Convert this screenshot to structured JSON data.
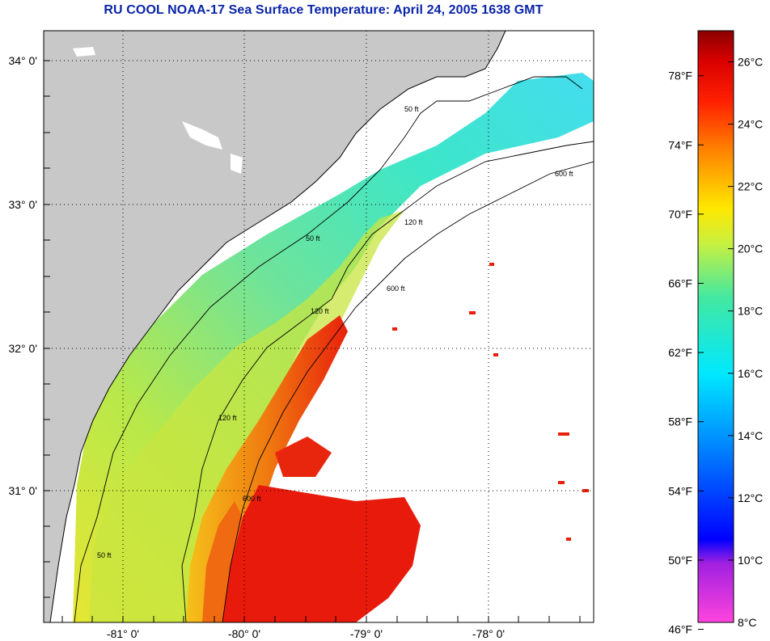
{
  "title": "RU COOL  NOAA-17  Sea Surface Temperature:  April 24, 2005 1638 GMT",
  "map": {
    "lon_ticks": [
      "-81° 0'",
      "-80° 0'",
      "-79° 0'",
      "-78° 0'"
    ],
    "lat_ticks": [
      "34° 0'",
      "33° 0'",
      "32° 0'",
      "31° 0'"
    ],
    "contours": [
      {
        "label": "50 ft"
      },
      {
        "label": "120 ft"
      },
      {
        "label": "600 ft"
      }
    ],
    "colors": {
      "land": "#c8c8c8",
      "cloud_no_data": "#ffffff",
      "coastline": "#000000",
      "grid": "#000000"
    }
  },
  "colorbar": {
    "fahrenheit_labels": [
      "78°F",
      "74°F",
      "70°F",
      "66°F",
      "62°F",
      "58°F",
      "54°F",
      "50°F",
      "46°F"
    ],
    "celsius_labels": [
      "26°C",
      "24°C",
      "22°C",
      "20°C",
      "18°C",
      "16°C",
      "14°C",
      "12°C",
      "10°C",
      "8°C"
    ],
    "celsius_range": [
      8,
      27
    ]
  }
}
